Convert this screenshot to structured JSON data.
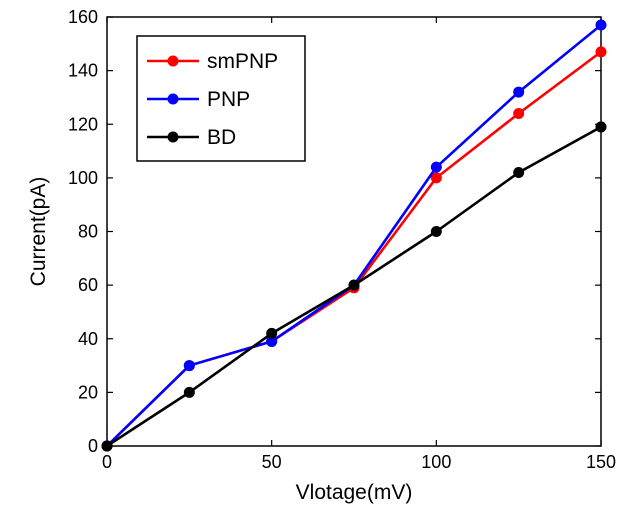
{
  "chart_data": {
    "type": "line",
    "xlabel": "Vlotage(mV)",
    "ylabel": "Current(pA)",
    "x": [
      0,
      25,
      50,
      75,
      100,
      125,
      150
    ],
    "xlim": [
      0,
      150
    ],
    "ylim": [
      0,
      160
    ],
    "xticks": [
      0,
      50,
      100,
      150
    ],
    "yticks": [
      0,
      20,
      40,
      60,
      80,
      100,
      120,
      140,
      160
    ],
    "grid": false,
    "legend_position": "top-left",
    "series": [
      {
        "name": "smPNP",
        "color": "#ff0000",
        "values": [
          0,
          30,
          39,
          59,
          100,
          124,
          147
        ]
      },
      {
        "name": "PNP",
        "color": "#0000ff",
        "values": [
          0,
          30,
          39,
          60,
          104,
          132,
          157
        ]
      },
      {
        "name": "BD",
        "color": "#000000",
        "values": [
          0,
          20,
          42,
          60,
          80,
          102,
          119
        ]
      }
    ]
  }
}
